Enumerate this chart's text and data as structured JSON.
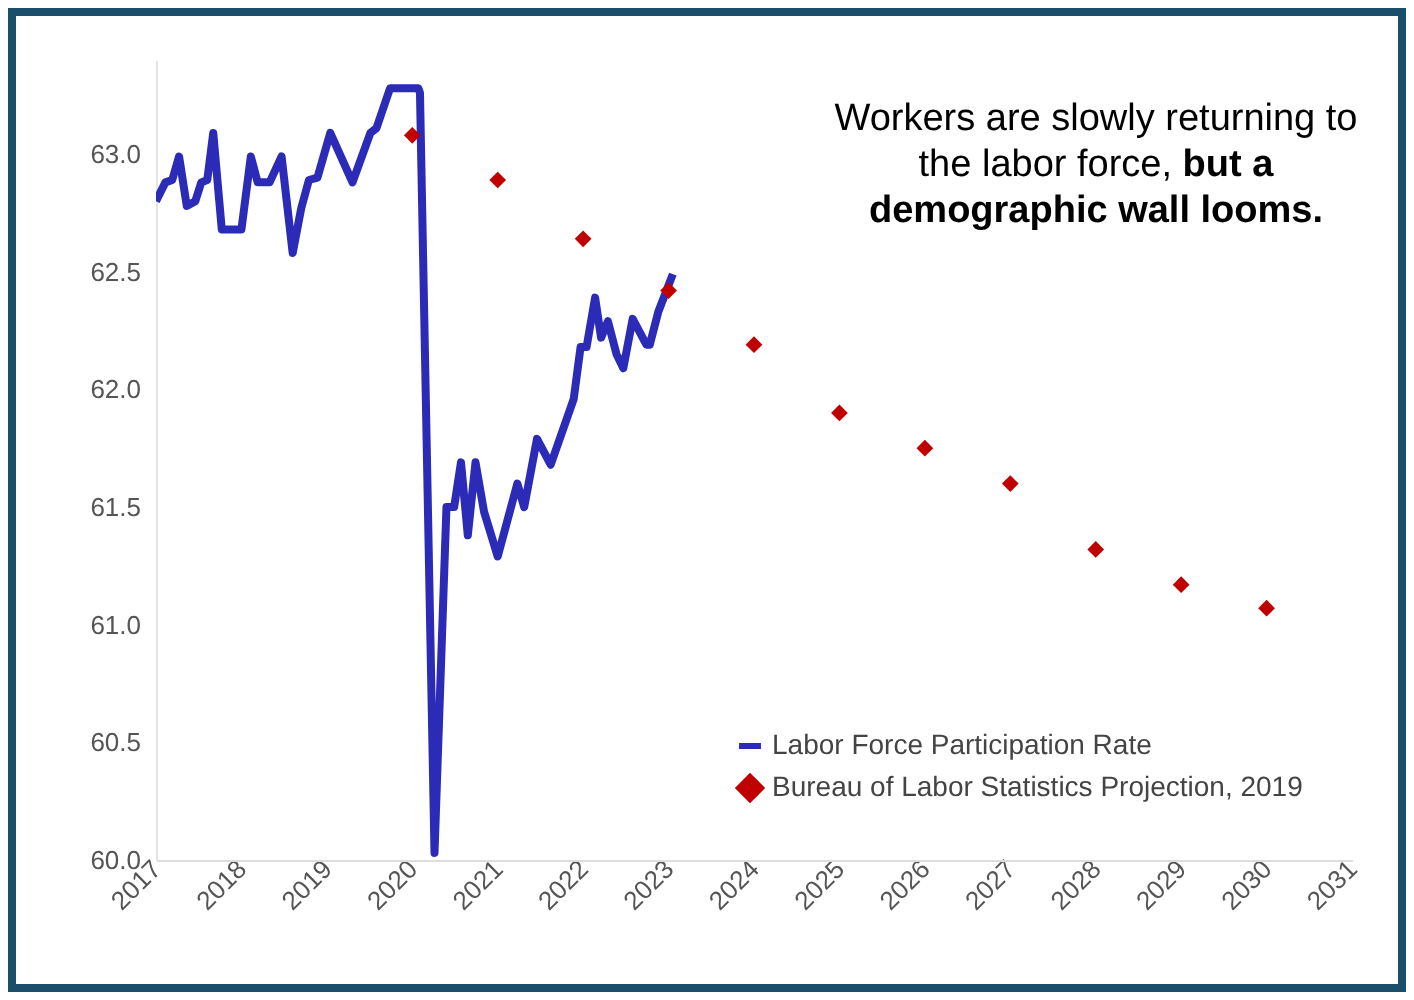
{
  "chart_data": {
    "type": "line",
    "annotations": [
      "Workers are slowly returning to the labor force,",
      "but a demographic wall looms."
    ],
    "xlim": [
      2017,
      2031
    ],
    "xticks": [
      2017,
      2018,
      2019,
      2020,
      2021,
      2022,
      2023,
      2024,
      2025,
      2026,
      2027,
      2028,
      2029,
      2030,
      2031
    ],
    "ylim": [
      60,
      63.4
    ],
    "yticks": [
      {
        "value": 60,
        "label": "60.0"
      },
      60.5,
      {
        "value": 61,
        "label": "61.0"
      },
      61.5,
      {
        "value": 62,
        "label": "62.0"
      },
      62.5,
      {
        "value": 63,
        "label": "63.0"
      }
    ],
    "grid": false,
    "legend": "bottom right",
    "series": [
      {
        "name": "Labor Force Participation Rate",
        "color": "#2b2bb8",
        "line_style": "solid",
        "marker": "none",
        "x": [
          2017.0,
          2017.11,
          2017.19,
          2017.27,
          2017.36,
          2017.46,
          2017.53,
          2017.6,
          2017.67,
          2017.77,
          2018.0,
          2018.11,
          2018.19,
          2018.33,
          2018.47,
          2018.6,
          2018.7,
          2018.79,
          2018.89,
          2019.04,
          2019.3,
          2019.51,
          2019.58,
          2019.74,
          2020.07,
          2020.09,
          2020.26,
          2020.4,
          2020.49,
          2020.57,
          2020.65,
          2020.74,
          2020.84,
          2021.0,
          2021.23,
          2021.31,
          2021.46,
          2021.62,
          2021.89,
          2021.97,
          2022.04,
          2022.14,
          2022.21,
          2022.29,
          2022.39,
          2022.47,
          2022.58,
          2022.74,
          2022.78,
          2022.88,
          2023.05
        ],
        "values": [
          62.8,
          62.88,
          62.89,
          62.99,
          62.78,
          62.8,
          62.88,
          62.89,
          63.09,
          62.68,
          62.68,
          62.99,
          62.88,
          62.88,
          62.99,
          62.58,
          62.77,
          62.89,
          62.9,
          63.09,
          62.88,
          63.09,
          63.11,
          63.28,
          63.28,
          63.26,
          60.03,
          61.5,
          61.5,
          61.69,
          61.38,
          61.69,
          61.48,
          61.29,
          61.6,
          61.5,
          61.79,
          61.68,
          61.96,
          62.18,
          62.18,
          62.39,
          62.22,
          62.29,
          62.15,
          62.09,
          62.3,
          62.19,
          62.19,
          62.33,
          62.49
        ]
      },
      {
        "name": "Bureau of Labor Statistics Projection, 2019",
        "type": "scatter",
        "marker": "diamond",
        "color": "#c00000",
        "x": [
          2020,
          2021,
          2022,
          2023,
          2024,
          2025,
          2026,
          2027,
          2028,
          2029,
          2030
        ],
        "values": [
          63.08,
          62.89,
          62.64,
          62.42,
          62.19,
          61.9,
          61.75,
          61.6,
          61.32,
          61.17,
          61.07
        ]
      }
    ]
  }
}
